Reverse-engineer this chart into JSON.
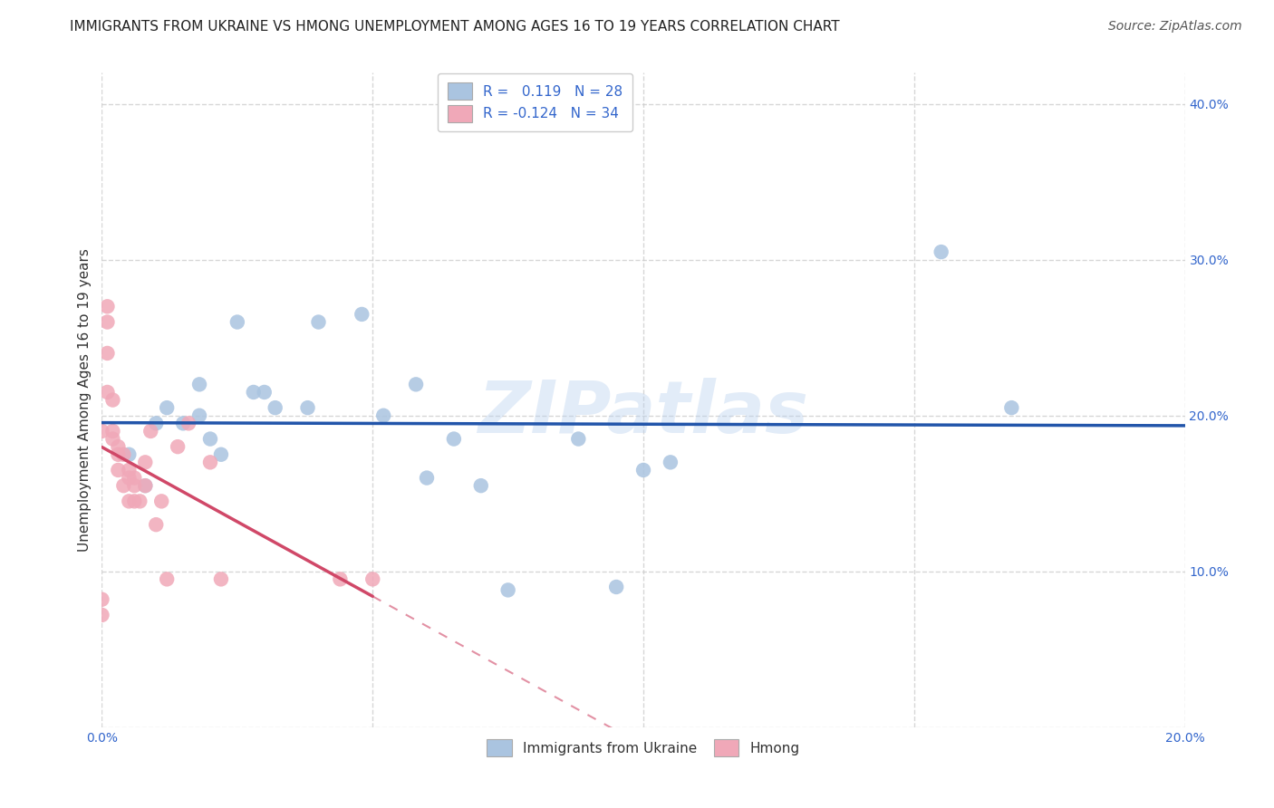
{
  "title": "IMMIGRANTS FROM UKRAINE VS HMONG UNEMPLOYMENT AMONG AGES 16 TO 19 YEARS CORRELATION CHART",
  "source": "Source: ZipAtlas.com",
  "ylabel": "Unemployment Among Ages 16 to 19 years",
  "xlabel_ukraine": "Immigrants from Ukraine",
  "xlabel_hmong": "Hmong",
  "xlim": [
    0.0,
    0.2
  ],
  "ylim": [
    0.0,
    0.42
  ],
  "xticks": [
    0.0,
    0.05,
    0.1,
    0.15,
    0.2
  ],
  "yticks": [
    0.0,
    0.1,
    0.2,
    0.3,
    0.4
  ],
  "ukraine_R": 0.119,
  "ukraine_N": 28,
  "hmong_R": -0.124,
  "hmong_N": 34,
  "ukraine_color": "#aac4e0",
  "ukraine_line_color": "#2255aa",
  "hmong_color": "#f0a8b8",
  "hmong_line_color": "#d04868",
  "watermark": "ZIPatlas",
  "ukraine_points_x": [
    0.005,
    0.008,
    0.01,
    0.012,
    0.015,
    0.018,
    0.018,
    0.02,
    0.022,
    0.025,
    0.028,
    0.03,
    0.032,
    0.038,
    0.04,
    0.048,
    0.052,
    0.058,
    0.06,
    0.065,
    0.07,
    0.075,
    0.088,
    0.095,
    0.1,
    0.105,
    0.155,
    0.168
  ],
  "ukraine_points_y": [
    0.175,
    0.155,
    0.195,
    0.205,
    0.195,
    0.22,
    0.2,
    0.185,
    0.175,
    0.26,
    0.215,
    0.215,
    0.205,
    0.205,
    0.26,
    0.265,
    0.2,
    0.22,
    0.16,
    0.185,
    0.155,
    0.088,
    0.185,
    0.09,
    0.165,
    0.17,
    0.305,
    0.205
  ],
  "hmong_points_x": [
    0.0,
    0.0,
    0.0,
    0.001,
    0.001,
    0.001,
    0.001,
    0.002,
    0.002,
    0.002,
    0.003,
    0.003,
    0.003,
    0.004,
    0.004,
    0.005,
    0.005,
    0.005,
    0.006,
    0.006,
    0.006,
    0.007,
    0.008,
    0.008,
    0.009,
    0.01,
    0.011,
    0.012,
    0.014,
    0.016,
    0.02,
    0.022,
    0.044,
    0.05
  ],
  "hmong_points_y": [
    0.082,
    0.072,
    0.19,
    0.27,
    0.26,
    0.24,
    0.215,
    0.21,
    0.19,
    0.185,
    0.18,
    0.175,
    0.165,
    0.175,
    0.155,
    0.165,
    0.16,
    0.145,
    0.16,
    0.155,
    0.145,
    0.145,
    0.17,
    0.155,
    0.19,
    0.13,
    0.145,
    0.095,
    0.18,
    0.195,
    0.17,
    0.095,
    0.095,
    0.095
  ],
  "background_color": "#ffffff",
  "grid_color": "#cccccc",
  "title_fontsize": 11,
  "axis_label_fontsize": 11,
  "tick_fontsize": 10,
  "legend_fontsize": 11,
  "source_fontsize": 10
}
